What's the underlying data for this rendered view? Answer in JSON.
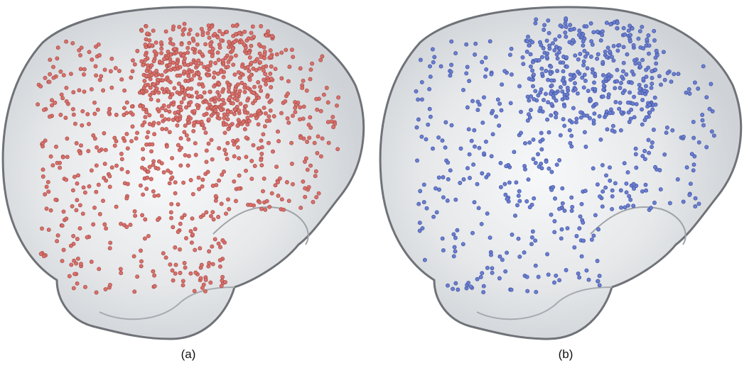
{
  "panels": [
    {
      "id": "a",
      "caption": "(a)",
      "dot_color": "#d9706b",
      "dot_stroke": "#a84a45",
      "dot_count": 1150,
      "seed": 11,
      "hotspot": [
        0.55,
        0.22
      ]
    },
    {
      "id": "b",
      "caption": "(b)",
      "dot_color": "#6b7fd0",
      "dot_stroke": "#4052a3",
      "dot_count": 760,
      "seed": 29,
      "hotspot": [
        0.57,
        0.2
      ]
    }
  ],
  "colors": {
    "brain_fill": "#dfe2e5",
    "brain_edge": "#6f7378",
    "brain_highlight": "#f6f7f8",
    "background": "#ffffff"
  }
}
